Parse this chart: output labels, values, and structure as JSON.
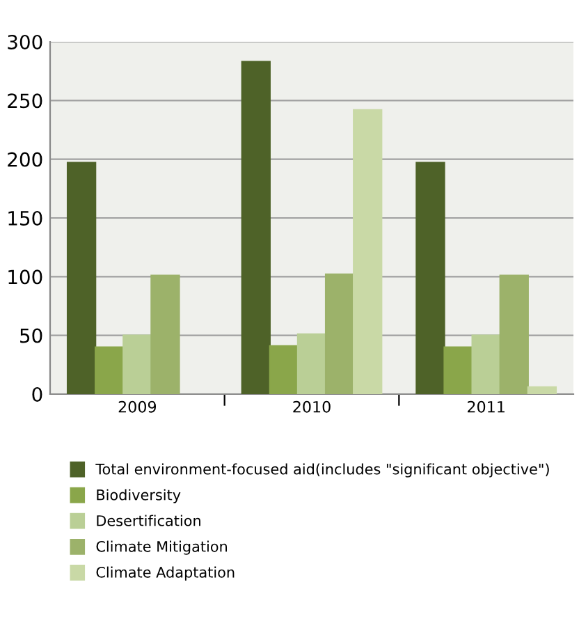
{
  "chart_data": {
    "type": "bar",
    "categories": [
      "2009",
      "2010",
      "2011"
    ],
    "series": [
      {
        "name": "Total environment-focused aid(includes \"significant objective\")",
        "color": "#4e6228",
        "values": [
          197,
          283,
          197
        ]
      },
      {
        "name": "Biodiversity",
        "color": "#8aa64a",
        "values": [
          40,
          41,
          40
        ]
      },
      {
        "name": "Desertification",
        "color": "#bacf96",
        "values": [
          50,
          51,
          50
        ]
      },
      {
        "name": "Climate Mitigation",
        "color": "#9cb26a",
        "values": [
          101,
          102,
          101
        ]
      },
      {
        "name": "Climate Adaptation",
        "color": "#c9d9a6",
        "values": [
          null,
          242,
          6
        ]
      }
    ],
    "ylim": [
      0,
      300
    ],
    "yticks": [
      0,
      50,
      100,
      150,
      200,
      250,
      300
    ],
    "grid": "y",
    "legend": "bottom"
  }
}
